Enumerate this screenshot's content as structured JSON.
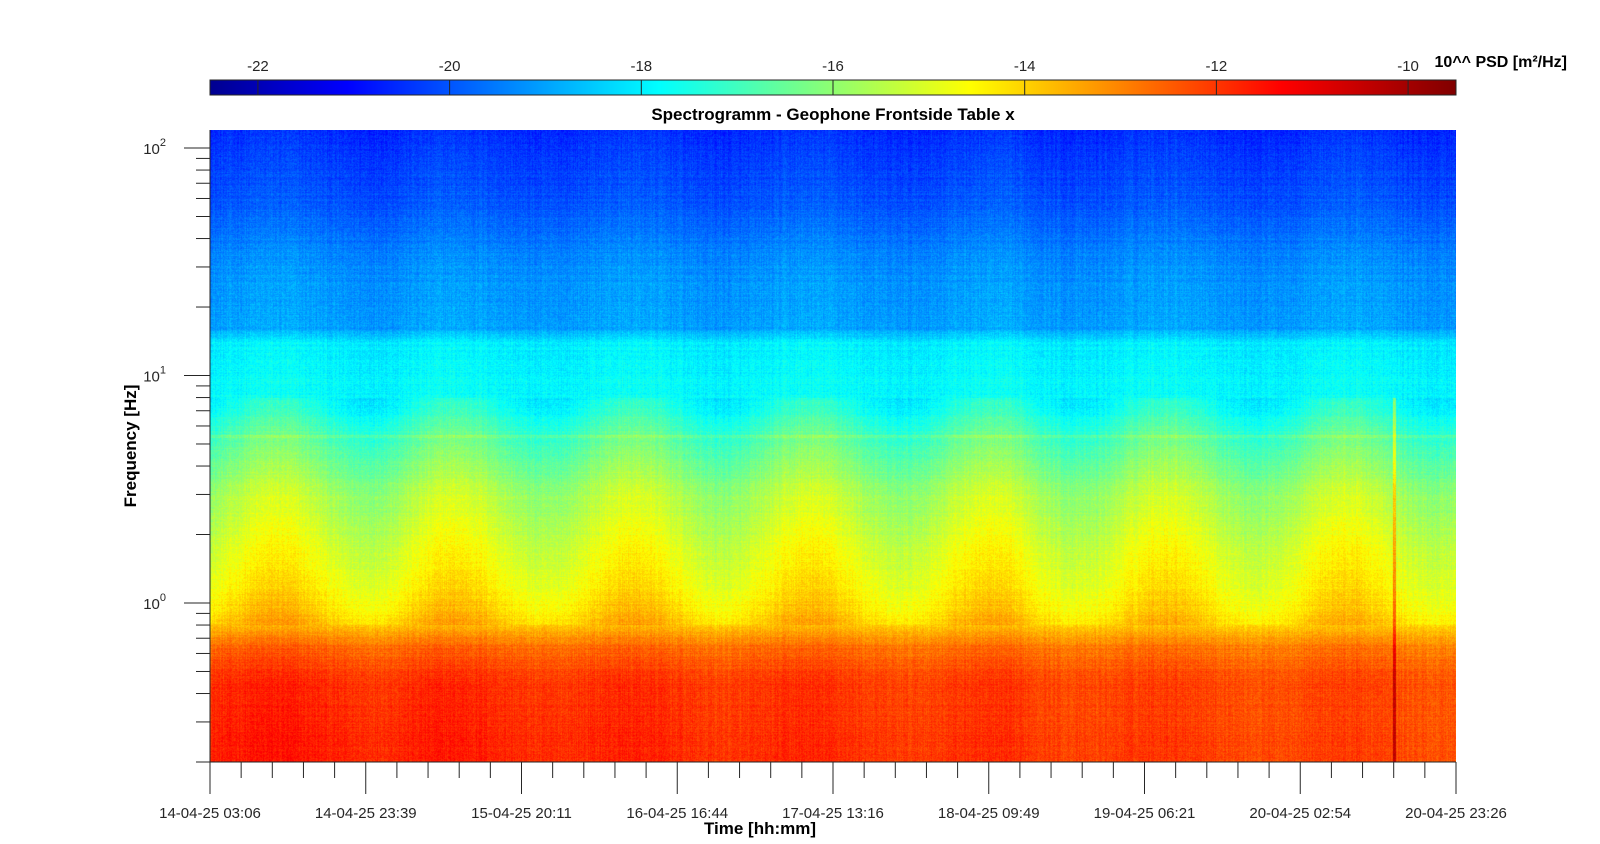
{
  "chart_data": {
    "type": "heatmap",
    "title": "Spectrogramm - Geophone Frontside Table x",
    "xlabel": "Time [hh:mm]",
    "ylabel": "Frequency [Hz]",
    "yscale": "log",
    "ylim": [
      0.2,
      120
    ],
    "x_tick_labels": [
      "14-04-25 03:06",
      "14-04-25 23:39",
      "15-04-25 20:11",
      "16-04-25 16:44",
      "17-04-25 13:16",
      "18-04-25 09:49",
      "19-04-25 06:21",
      "20-04-25 02:54",
      "20-04-25 23:26"
    ],
    "y_ticks": [
      {
        "base": "10",
        "exp": "2",
        "value": 100
      },
      {
        "base": "10",
        "exp": "1",
        "value": 10
      },
      {
        "base": "10",
        "exp": "0",
        "value": 1
      }
    ],
    "colorbar": {
      "label": "10^^ PSD [m²/Hz]",
      "range": [
        -22.5,
        -9.5
      ],
      "ticks": [
        -22,
        -20,
        -18,
        -16,
        -14,
        -12,
        -10
      ],
      "tick_labels": [
        "-22",
        "-20",
        "-18",
        "-16",
        "-14",
        "-12",
        "-10"
      ],
      "colormap": "jet",
      "position": "top"
    },
    "frequency_profile_log10psd": [
      {
        "f": 0.2,
        "psd": -11.4
      },
      {
        "f": 0.3,
        "psd": -11.5
      },
      {
        "f": 0.45,
        "psd": -11.6
      },
      {
        "f": 0.65,
        "psd": -12.4
      },
      {
        "f": 0.8,
        "psd": -13.5
      },
      {
        "f": 1.0,
        "psd": -14.0
      },
      {
        "f": 1.5,
        "psd": -14.6
      },
      {
        "f": 3.0,
        "psd": -15.4
      },
      {
        "f": 4.5,
        "psd": -16.2
      },
      {
        "f": 5.4,
        "psd": -16.6
      },
      {
        "f": 8.0,
        "psd": -17.6
      },
      {
        "f": 14.0,
        "psd": -17.8
      },
      {
        "f": 16.0,
        "psd": -18.8
      },
      {
        "f": 30.0,
        "psd": -19.0
      },
      {
        "f": 60.0,
        "psd": -19.8
      },
      {
        "f": 120.0,
        "psd": -20.3
      }
    ],
    "notable_features": [
      {
        "description": "narrow horizontal band",
        "f": 5.4
      },
      {
        "description": "broadband transient vertical line",
        "time_index_fraction": 0.95
      },
      {
        "description": "low-frequency higher energy blobs",
        "f_range": [
          0.3,
          0.6
        ]
      }
    ]
  }
}
